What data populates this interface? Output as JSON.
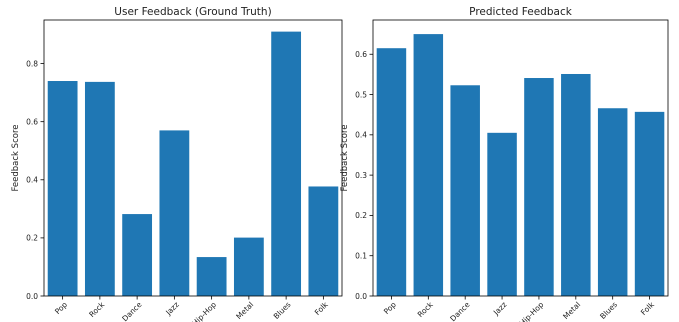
{
  "chart_data": [
    {
      "type": "bar",
      "title": "User Feedback (Ground Truth)",
      "xlabel": "",
      "ylabel": "Feedback Score",
      "categories": [
        "Pop",
        "Rock",
        "Dance",
        "Jazz",
        "Hip-Hop",
        "Metal",
        "Blues",
        "Folk"
      ],
      "values": [
        0.74,
        0.737,
        0.282,
        0.57,
        0.134,
        0.201,
        0.91,
        0.377
      ],
      "ylim": [
        0,
        0.95
      ],
      "yticks": [
        "0.0",
        "0.2",
        "0.4",
        "0.6",
        "0.8"
      ],
      "grid": false,
      "color": "#1f77b4"
    },
    {
      "type": "bar",
      "title": "Predicted Feedback",
      "xlabel": "",
      "ylabel": "Feedback Score",
      "categories": [
        "Pop",
        "Rock",
        "Dance",
        "Jazz",
        "Hip-Hop",
        "Metal",
        "Blues",
        "Folk"
      ],
      "values": [
        0.615,
        0.65,
        0.523,
        0.405,
        0.541,
        0.551,
        0.466,
        0.457
      ],
      "ylim": [
        0,
        0.685
      ],
      "yticks": [
        "0.0",
        "0.1",
        "0.2",
        "0.3",
        "0.4",
        "0.5",
        "0.6"
      ],
      "grid": false,
      "color": "#1f77b4"
    }
  ]
}
